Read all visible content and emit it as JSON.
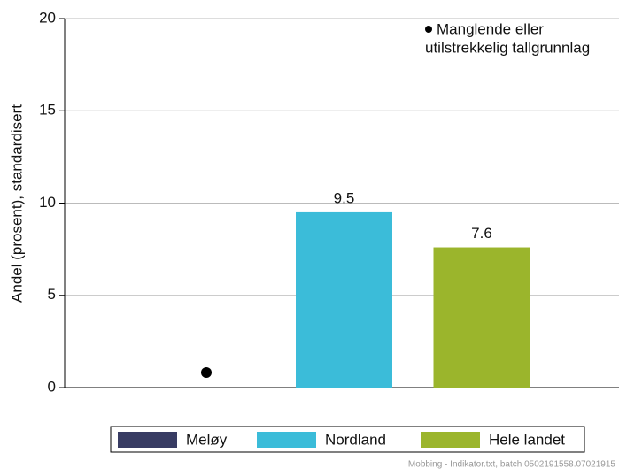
{
  "chart_data": {
    "type": "bar",
    "categories": [
      "Meløy",
      "Nordland",
      "Hele landet"
    ],
    "values": [
      null,
      9.5,
      7.6
    ],
    "colors": [
      "#383c63",
      "#3bbcd9",
      "#9bb52c"
    ],
    "y_label": "Andel (prosent), standardisert",
    "ylim": [
      0,
      20
    ],
    "yticks": [
      0,
      5,
      10,
      15,
      20
    ],
    "grid": true,
    "annotation": [
      "Manglende eller",
      "utilstrekkelig tallgrunnlag"
    ],
    "footer": "Mobbing - Indikator.txt, batch 0502191558.07021915"
  }
}
